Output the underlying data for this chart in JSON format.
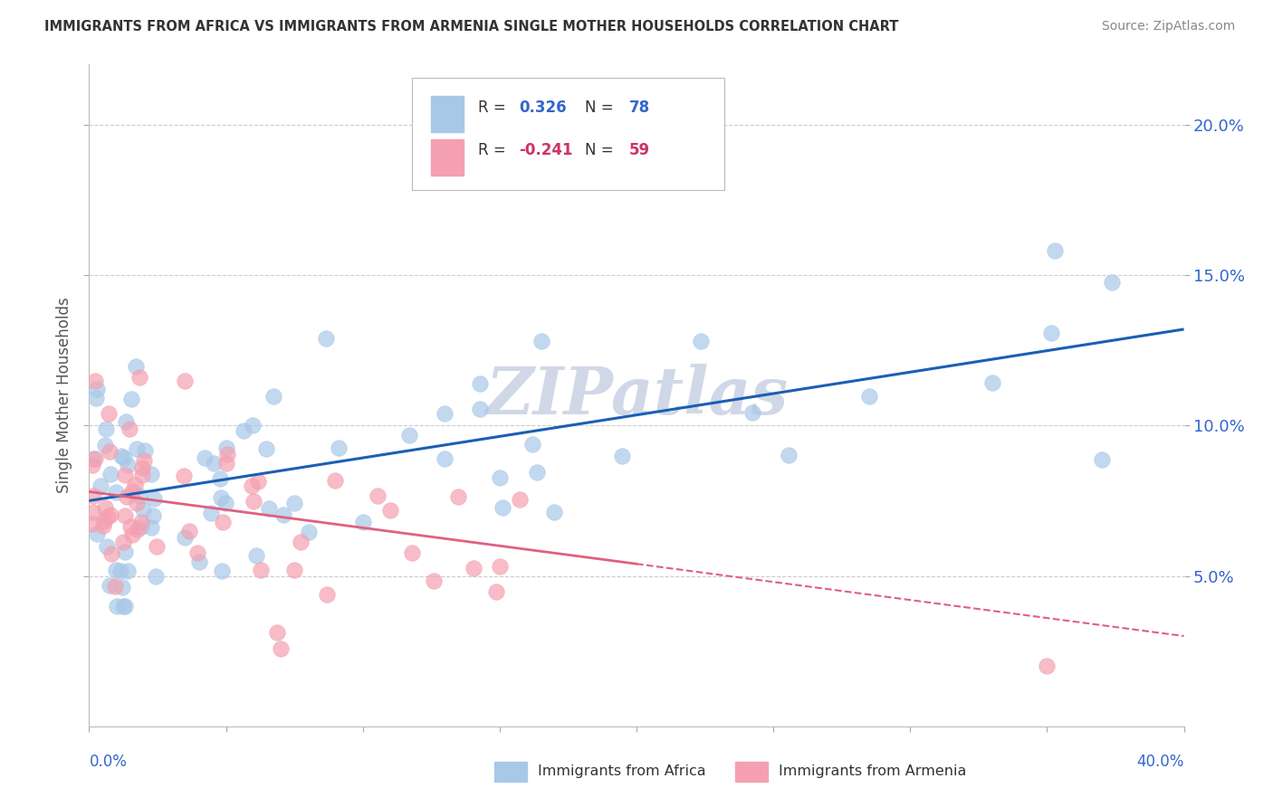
{
  "title": "IMMIGRANTS FROM AFRICA VS IMMIGRANTS FROM ARMENIA SINGLE MOTHER HOUSEHOLDS CORRELATION CHART",
  "source": "Source: ZipAtlas.com",
  "ylabel": "Single Mother Households",
  "africa_color": "#a8c8e8",
  "armenia_color": "#f4a0b0",
  "africa_line_color": "#1a5fb4",
  "armenia_line_color": "#e06080",
  "title_color": "#333333",
  "source_color": "#888888",
  "background_color": "#ffffff",
  "grid_color": "#cccccc",
  "xlim": [
    0.0,
    0.4
  ],
  "ylim": [
    0.0,
    0.22
  ],
  "yticks": [
    0.05,
    0.1,
    0.15,
    0.2
  ],
  "ytick_labels": [
    "5.0%",
    "10.0%",
    "15.0%",
    "20.0%"
  ],
  "africa_line_x0": 0.0,
  "africa_line_y0": 0.075,
  "africa_line_x1": 0.4,
  "africa_line_y1": 0.132,
  "armenia_line_x0": 0.0,
  "armenia_line_y0": 0.078,
  "armenia_line_x1": 0.4,
  "armenia_line_y1": 0.03,
  "armenia_line_solid_end": 0.2,
  "watermark_text": "ZIPatlas",
  "watermark_color": "#d0d8e8",
  "legend_label_africa": "R =  0.326   N = 78",
  "legend_label_armenia": "R = -0.241   N = 59",
  "legend_r_africa": " 0.326",
  "legend_n_africa": "78",
  "legend_r_armenia": "-0.241",
  "legend_n_armenia": "59",
  "r_n_color_africa": "#3366cc",
  "r_n_color_armenia": "#cc3366"
}
